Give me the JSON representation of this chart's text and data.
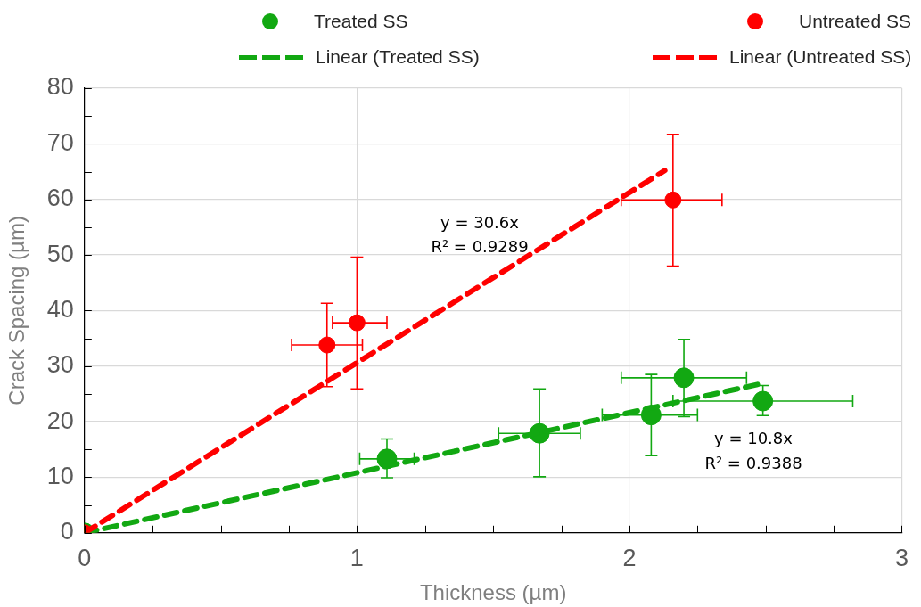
{
  "chart_data": {
    "type": "scatter",
    "xlabel": "Thickness (µm)",
    "ylabel": "Crack Spacing (µm)",
    "xlim": [
      0,
      3
    ],
    "xticks": [
      0,
      {
        "value": 0.25,
        "label": null
      },
      {
        "value": 0.5,
        "label": null
      },
      {
        "value": 0.75,
        "label": null
      },
      1,
      {
        "value": 1.25,
        "label": null
      },
      {
        "value": 1.5,
        "label": null
      },
      {
        "value": 1.75,
        "label": null
      },
      2,
      {
        "value": 2.25,
        "label": null
      },
      {
        "value": 2.5,
        "label": null
      },
      {
        "value": 2.75,
        "label": null
      },
      3
    ],
    "ylim": [
      0,
      80
    ],
    "yticks": [
      0,
      {
        "value": 5,
        "label": null
      },
      10,
      {
        "value": 15,
        "label": null
      },
      20,
      {
        "value": 25,
        "label": null
      },
      30,
      {
        "value": 35,
        "label": null
      },
      40,
      {
        "value": 45,
        "label": null
      },
      50,
      {
        "value": 55,
        "label": null
      },
      60,
      {
        "value": 65,
        "label": null
      },
      70,
      {
        "value": 75,
        "label": null
      },
      80
    ],
    "grid": true,
    "legend": "top",
    "marker": "circle",
    "series": [
      {
        "name": "Treated SS",
        "color": "#12a812",
        "x": [
          0,
          1.11,
          1.67,
          2.08,
          2.2,
          2.49
        ],
        "values": [
          0,
          13.3,
          17.9,
          21.2,
          27.9,
          23.7
        ],
        "errors": [
          null,
          [
            9.9,
            16.9
          ],
          [
            10.1,
            25.9
          ],
          [
            13.9,
            28.5
          ],
          [
            20.9,
            34.8
          ],
          [
            21.1,
            26.5
          ]
        ],
        "xerrors": [
          null,
          [
            1.01,
            1.21
          ],
          [
            1.52,
            1.82
          ],
          [
            1.9,
            2.25
          ],
          [
            1.97,
            2.43
          ],
          [
            2.16,
            2.82
          ]
        ]
      },
      {
        "name": "Untreated SS",
        "color": "#ff0000",
        "x": [
          0,
          0.89,
          1.0,
          2.16
        ],
        "values": [
          0,
          33.8,
          37.8,
          59.9
        ],
        "errors": [
          null,
          [
            26.3,
            41.3
          ],
          [
            25.9,
            49.6
          ],
          [
            48.0,
            71.7
          ]
        ],
        "xerrors": [
          null,
          [
            0.76,
            1.02
          ],
          [
            0.91,
            1.11
          ],
          [
            1.97,
            2.34
          ]
        ]
      },
      {
        "name": "Linear (Treated SS)",
        "type": "line",
        "color": "#12a812",
        "line_style": "dashed",
        "marker": "none",
        "x": [
          0,
          2.47
        ],
        "values": [
          0,
          26.7
        ]
      },
      {
        "name": "Linear (Untreated SS)",
        "type": "line",
        "color": "#ff0000",
        "line_style": "dashed",
        "marker": "none",
        "x": [
          0,
          2.13
        ],
        "values": [
          0,
          65.2
        ]
      }
    ],
    "annotations": [
      "y = 30.6x",
      "R² = 0.9289",
      "y = 10.8x",
      "R² = 0.9388"
    ]
  }
}
